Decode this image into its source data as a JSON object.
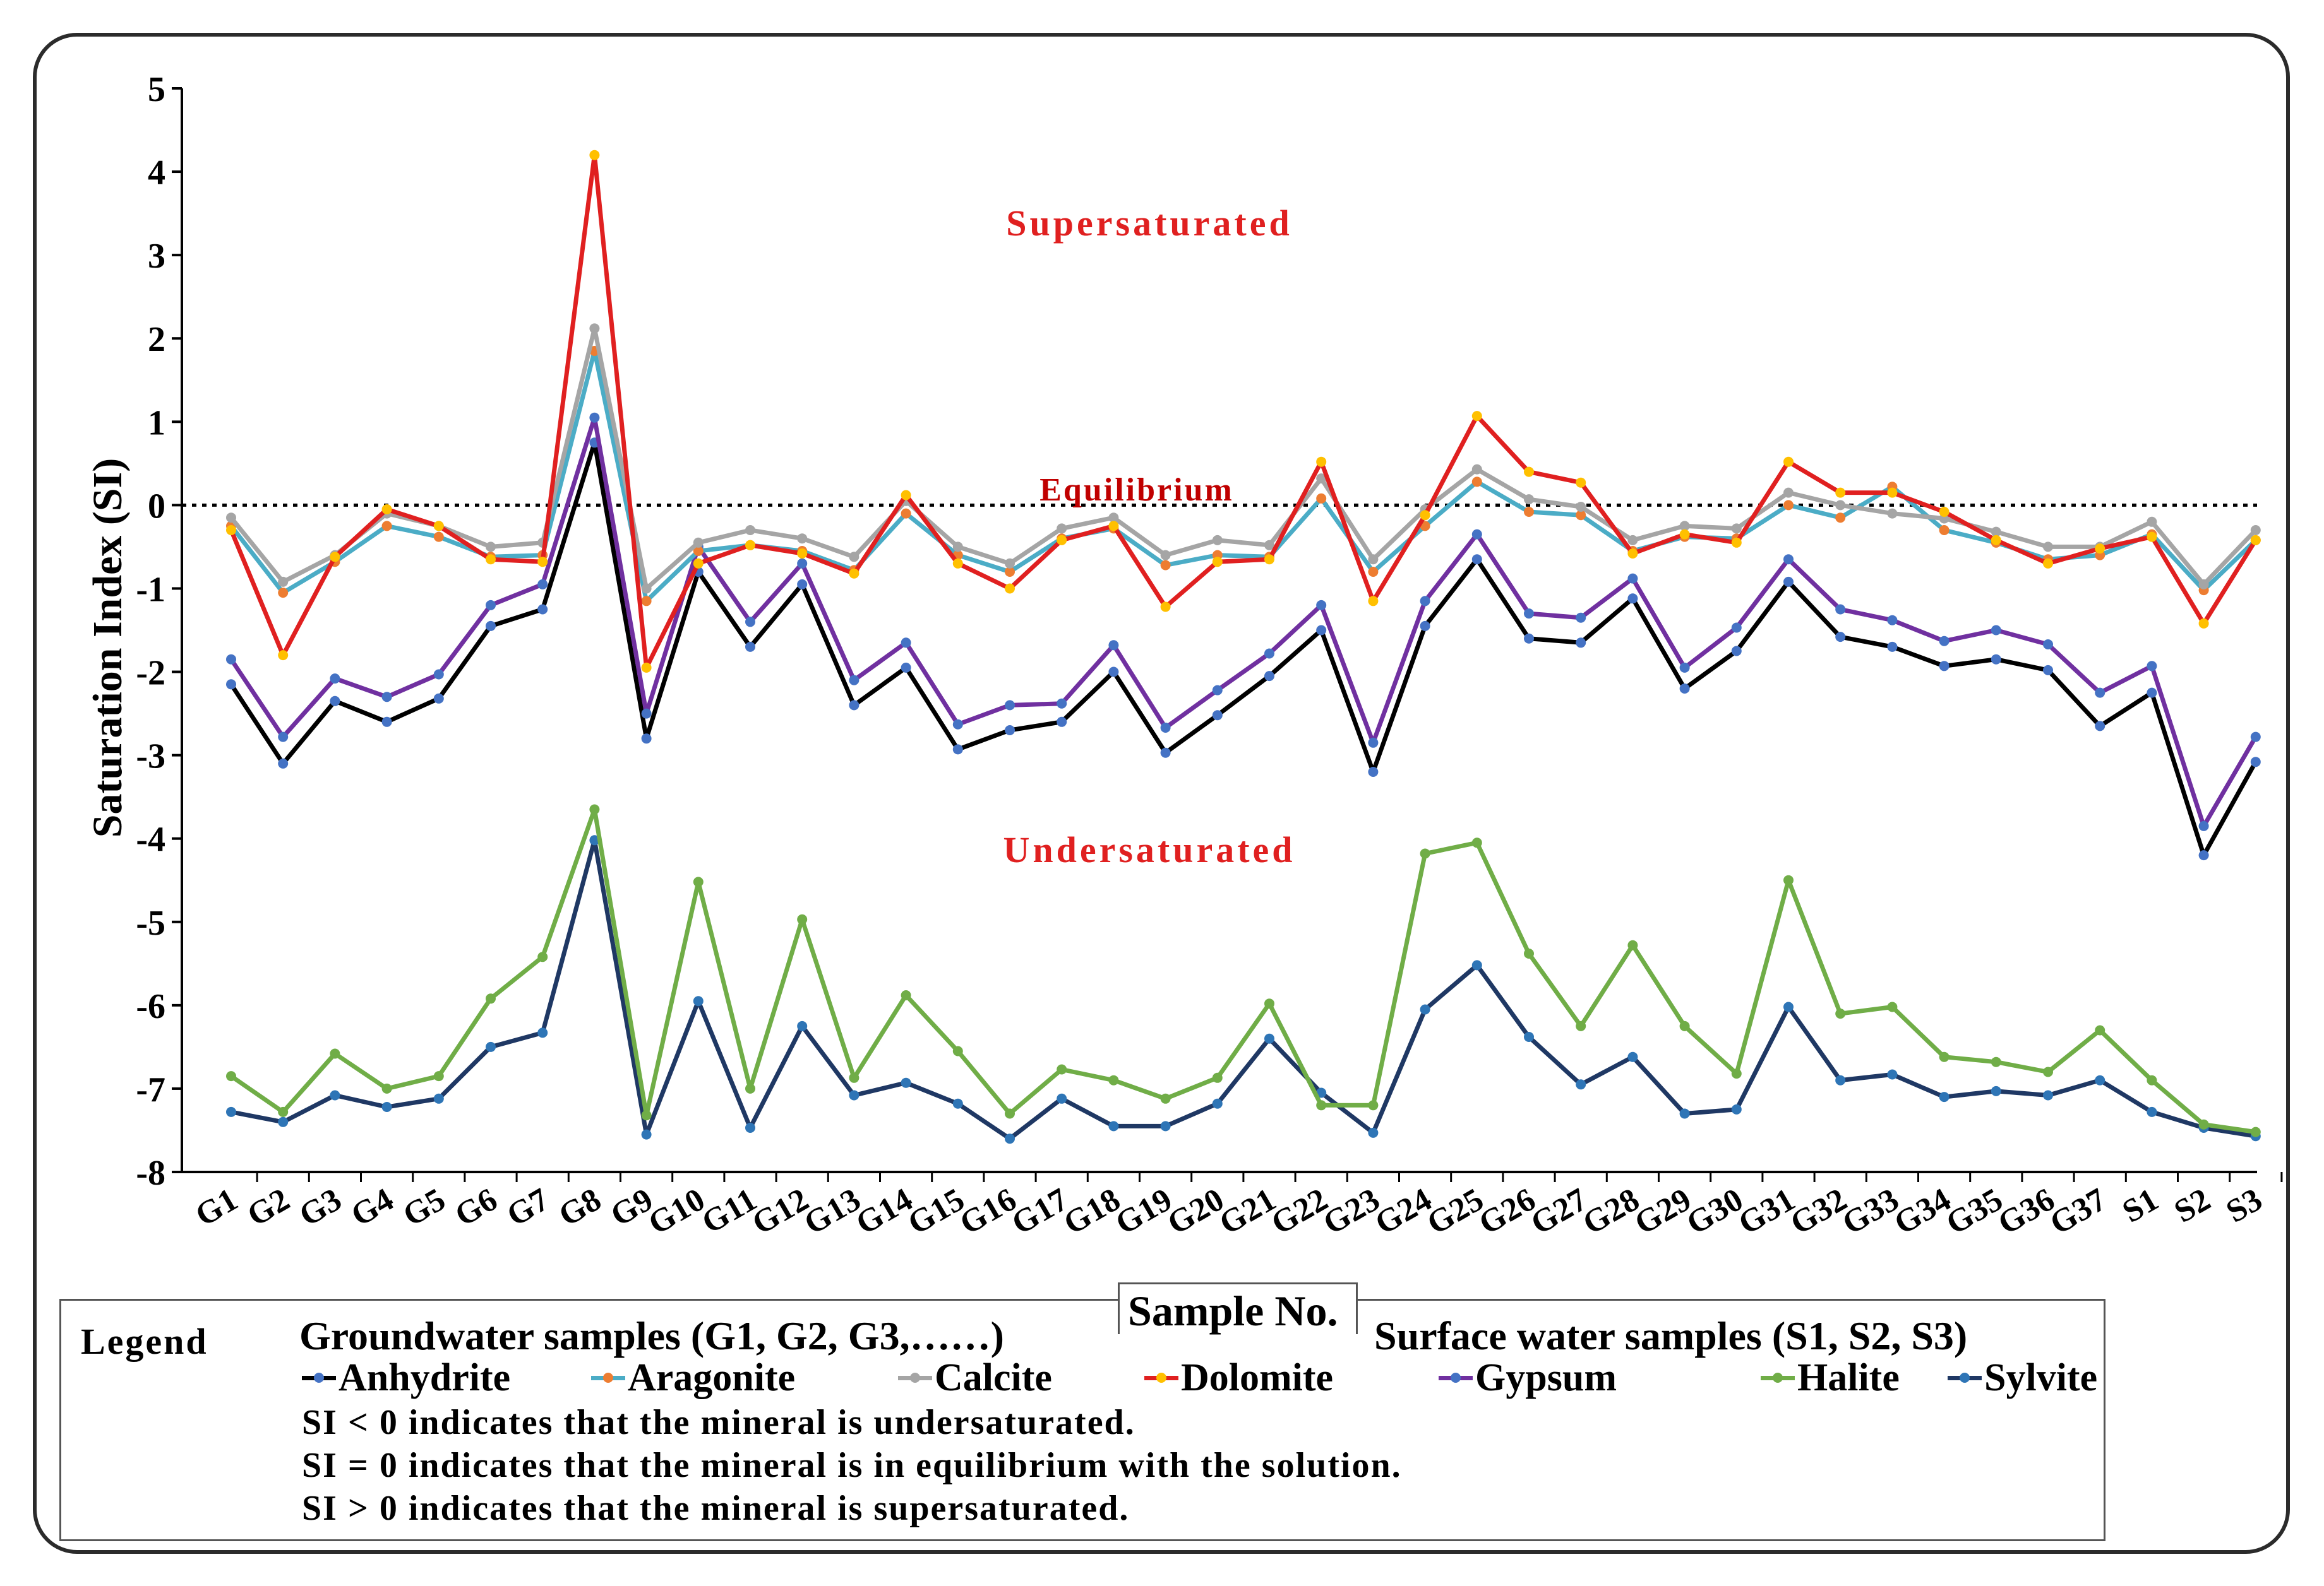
{
  "chart_data": {
    "type": "line",
    "ylabel": "Saturation Index (SI)",
    "xlabel": "Sample No.",
    "ylim": [
      -8,
      5
    ],
    "yticks": [
      5,
      4,
      3,
      2,
      1,
      0,
      -1,
      -2,
      -3,
      -4,
      -5,
      -6,
      -7,
      -8
    ],
    "categories": [
      "G1",
      "G2",
      "G3",
      "G4",
      "G5",
      "G6",
      "G7",
      "G8",
      "G9",
      "G10",
      "G11",
      "G12",
      "G13",
      "G14",
      "G15",
      "G16",
      "G17",
      "G18",
      "G19",
      "G20",
      "G21",
      "G22",
      "G23",
      "G24",
      "G25",
      "G26",
      "G27",
      "G28",
      "G29",
      "G30",
      "G31",
      "G32",
      "G33",
      "G34",
      "G35",
      "G36",
      "G37",
      "S1",
      "S2",
      "S3"
    ],
    "equilibrium_value": 0,
    "annotations": {
      "supersaturated": "Supersaturated",
      "equilibrium": "Equilibrium",
      "undersaturated": "Undersaturated"
    },
    "series": [
      {
        "name": "Anhydrite",
        "line_color": "#000000",
        "marker_color": "#4472c4",
        "values": [
          -2.15,
          -3.1,
          -2.35,
          -2.6,
          -2.32,
          -1.45,
          -1.25,
          0.75,
          -2.8,
          -0.8,
          -1.7,
          -0.95,
          -2.4,
          -1.95,
          -2.93,
          -2.7,
          -2.6,
          -2.0,
          -2.97,
          -2.52,
          -2.05,
          -1.5,
          -3.2,
          -1.45,
          -0.65,
          -1.6,
          -1.65,
          -1.12,
          -2.2,
          -1.75,
          -0.92,
          -1.58,
          -1.7,
          -1.93,
          -1.85,
          -1.98,
          -2.65,
          -2.25,
          -4.2,
          -3.08
        ]
      },
      {
        "name": "Aragonite",
        "line_color": "#4bacc6",
        "marker_color": "#ed7d31",
        "values": [
          -0.25,
          -1.05,
          -0.68,
          -0.25,
          -0.38,
          -0.62,
          -0.6,
          1.85,
          -1.15,
          -0.55,
          -0.48,
          -0.55,
          -0.78,
          -0.1,
          -0.6,
          -0.8,
          -0.4,
          -0.28,
          -0.72,
          -0.6,
          -0.62,
          0.08,
          -0.8,
          -0.25,
          0.28,
          -0.08,
          -0.12,
          -0.55,
          -0.38,
          -0.4,
          0.0,
          -0.15,
          0.22,
          -0.3,
          -0.45,
          -0.65,
          -0.6,
          -0.35,
          -1.02,
          -0.42
        ]
      },
      {
        "name": "Calcite",
        "line_color": "#a5a5a5",
        "marker_color": "#a5a5a5",
        "values": [
          -0.15,
          -0.92,
          -0.6,
          -0.1,
          -0.25,
          -0.5,
          -0.45,
          2.12,
          -1.0,
          -0.45,
          -0.3,
          -0.4,
          -0.62,
          0.05,
          -0.5,
          -0.7,
          -0.28,
          -0.15,
          -0.6,
          -0.42,
          -0.48,
          0.32,
          -0.65,
          -0.05,
          0.43,
          0.07,
          -0.02,
          -0.42,
          -0.25,
          -0.28,
          0.15,
          0.0,
          -0.1,
          -0.16,
          -0.32,
          -0.5,
          -0.5,
          -0.2,
          -0.95,
          -0.3
        ]
      },
      {
        "name": "Dolomite",
        "line_color": "#e02020",
        "marker_color": "#ffc000",
        "values": [
          -0.3,
          -1.8,
          -0.62,
          -0.05,
          -0.25,
          -0.65,
          -0.68,
          4.2,
          -1.95,
          -0.7,
          -0.48,
          -0.58,
          -0.82,
          0.12,
          -0.7,
          -1.0,
          -0.42,
          -0.25,
          -1.22,
          -0.68,
          -0.65,
          0.52,
          -1.15,
          -0.12,
          1.07,
          0.4,
          0.27,
          -0.58,
          -0.35,
          -0.45,
          0.52,
          0.15,
          0.15,
          -0.08,
          -0.42,
          -0.7,
          -0.52,
          -0.38,
          -1.42,
          -0.42
        ]
      },
      {
        "name": "Gypsum",
        "line_color": "#7030a0",
        "marker_color": "#4472c4",
        "values": [
          -1.85,
          -2.78,
          -2.08,
          -2.3,
          -2.03,
          -1.2,
          -0.95,
          1.05,
          -2.5,
          -0.5,
          -1.4,
          -0.7,
          -2.1,
          -1.65,
          -2.63,
          -2.4,
          -2.38,
          -1.68,
          -2.67,
          -2.22,
          -1.78,
          -1.2,
          -2.85,
          -1.15,
          -0.35,
          -1.3,
          -1.35,
          -0.88,
          -1.95,
          -1.47,
          -0.65,
          -1.25,
          -1.38,
          -1.63,
          -1.5,
          -1.67,
          -2.25,
          -1.93,
          -3.85,
          -2.78
        ]
      },
      {
        "name": "Halite",
        "line_color": "#70ad47",
        "marker_color": "#70ad47",
        "values": [
          -6.85,
          -7.28,
          -6.58,
          -7.0,
          -6.85,
          -5.92,
          -5.42,
          -3.65,
          -7.32,
          -4.52,
          -7.0,
          -4.97,
          -6.87,
          -5.88,
          -6.55,
          -7.3,
          -6.77,
          -6.9,
          -7.12,
          -6.87,
          -5.98,
          -7.2,
          -7.2,
          -4.18,
          -4.05,
          -5.38,
          -6.25,
          -5.28,
          -6.25,
          -6.82,
          -4.5,
          -6.1,
          -6.02,
          -6.62,
          -6.68,
          -6.8,
          -6.3,
          -6.9,
          -7.43,
          -7.52
        ]
      },
      {
        "name": "Sylvite",
        "line_color": "#1f3864",
        "marker_color": "#2e75b6",
        "values": [
          -7.28,
          -7.4,
          -7.08,
          -7.22,
          -7.12,
          -6.5,
          -6.33,
          -4.02,
          -7.55,
          -5.95,
          -7.47,
          -6.25,
          -7.08,
          -6.93,
          -7.18,
          -7.6,
          -7.12,
          -7.45,
          -7.45,
          -7.18,
          -6.4,
          -7.05,
          -7.53,
          -6.05,
          -5.52,
          -6.38,
          -6.95,
          -6.62,
          -7.3,
          -7.25,
          -6.02,
          -6.9,
          -6.83,
          -7.1,
          -7.03,
          -7.08,
          -6.9,
          -7.28,
          -7.47,
          -7.57
        ]
      }
    ]
  },
  "legend": {
    "title": "Legend",
    "groundwater": "Groundwater samples (G1, G2, G3,……)",
    "surface": "Surface water samples (S1, S2, S3)",
    "notes": [
      "SI < 0 indicates that the mineral is undersaturated.",
      "SI = 0 indicates that the mineral is in equilibrium with the solution.",
      "SI > 0 indicates that the mineral is supersaturated."
    ]
  }
}
